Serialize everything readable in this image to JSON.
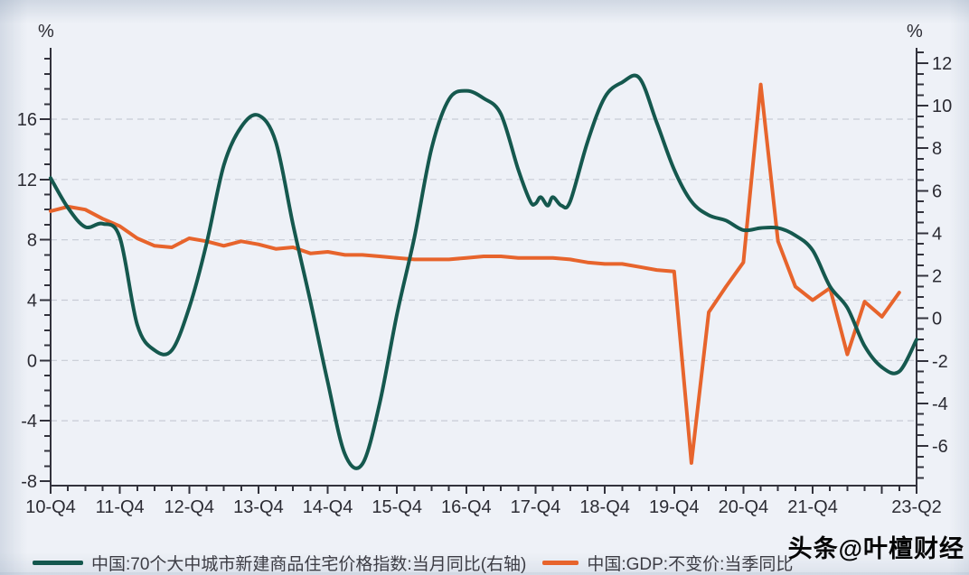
{
  "units": {
    "left": "%",
    "right": "%"
  },
  "legend": [
    {
      "label": "中国:70个大中城市新建商品住宅价格指数:当月同比(右轴)"
    },
    {
      "label": "中国:GDP:不变价:当季同比"
    }
  ],
  "watermark": "头条@叶檀财经",
  "chart_data": {
    "type": "line",
    "x_unit": "quarter",
    "x_start": "2010-Q4",
    "x_end": "2023-Q2",
    "x_labels": [
      {
        "q": 0,
        "label": "10-Q4"
      },
      {
        "q": 4,
        "label": "11-Q4"
      },
      {
        "q": 8,
        "label": "12-Q4"
      },
      {
        "q": 12,
        "label": "13-Q4"
      },
      {
        "q": 16,
        "label": "14-Q4"
      },
      {
        "q": 20,
        "label": "15-Q4"
      },
      {
        "q": 24,
        "label": "16-Q4"
      },
      {
        "q": 28,
        "label": "17-Q4"
      },
      {
        "q": 32,
        "label": "18-Q4"
      },
      {
        "q": 36,
        "label": "19-Q4"
      },
      {
        "q": 40,
        "label": "20-Q4"
      },
      {
        "q": 44,
        "label": "21-Q4"
      },
      {
        "q": 50,
        "label": "23-Q2"
      }
    ],
    "left_axis": {
      "unit": "%",
      "majors": [
        16,
        12,
        8,
        4,
        0,
        -4,
        -8
      ],
      "minor_step": 1,
      "minor_range": [
        -8,
        20
      ],
      "range": [
        -8.4,
        20.7
      ],
      "gridlines": [
        16,
        12,
        8,
        4,
        0,
        -4
      ]
    },
    "right_axis": {
      "unit": "%",
      "majors": [
        12,
        10,
        8,
        6,
        4,
        2,
        0,
        -2,
        -4,
        -6
      ],
      "minor_step": 0.5,
      "minor_range": [
        -7.5,
        12.5
      ],
      "range": [
        -7.9,
        12.7
      ]
    },
    "grid": {
      "style": "dashed",
      "color": "#c8ccd5"
    },
    "series": [
      {
        "name": "中国:70个大中城市新建商品住宅价格指数:当月同比(右轴)",
        "axis": "right",
        "color": "#15584e",
        "style": "smooth",
        "points": [
          [
            0,
            6.6
          ],
          [
            1,
            5.2
          ],
          [
            2,
            4.3
          ],
          [
            3,
            4.45
          ],
          [
            4,
            3.8
          ],
          [
            5,
            -0.3
          ],
          [
            6,
            -1.5
          ],
          [
            7,
            -1.5
          ],
          [
            8,
            0.5
          ],
          [
            9,
            3.5
          ],
          [
            10,
            7.2
          ],
          [
            11,
            9.0
          ],
          [
            12,
            9.55
          ],
          [
            13,
            8.3
          ],
          [
            14,
            4.4
          ],
          [
            15,
            0.8
          ],
          [
            16,
            -3.0
          ],
          [
            17,
            -6.4
          ],
          [
            18,
            -6.85
          ],
          [
            19,
            -4.0
          ],
          [
            20,
            0.2
          ],
          [
            21,
            3.8
          ],
          [
            22,
            8.0
          ],
          [
            23,
            10.3
          ],
          [
            24,
            10.7
          ],
          [
            25,
            10.35
          ],
          [
            26,
            9.6
          ],
          [
            27,
            7.0
          ],
          [
            27.7,
            5.5
          ],
          [
            28,
            5.4
          ],
          [
            28.3,
            5.7
          ],
          [
            28.7,
            5.3
          ],
          [
            29,
            5.7
          ],
          [
            29.5,
            5.3
          ],
          [
            30,
            5.5
          ],
          [
            31,
            8.3
          ],
          [
            32,
            10.4
          ],
          [
            33,
            11.1
          ],
          [
            34,
            11.3
          ],
          [
            35,
            9.2
          ],
          [
            36,
            7.0
          ],
          [
            37,
            5.5
          ],
          [
            38,
            4.85
          ],
          [
            39,
            4.6
          ],
          [
            40,
            4.15
          ],
          [
            41,
            4.25
          ],
          [
            42,
            4.25
          ],
          [
            43,
            3.9
          ],
          [
            44,
            3.2
          ],
          [
            45,
            1.5
          ],
          [
            46,
            0.5
          ],
          [
            47,
            -1.3
          ],
          [
            48,
            -2.3
          ],
          [
            49,
            -2.5
          ],
          [
            50,
            -1.0
          ]
        ]
      },
      {
        "name": "中国:GDP:不变价:当季同比",
        "axis": "left",
        "color": "#e7642c",
        "style": "linear",
        "points": [
          [
            0,
            9.9
          ],
          [
            1,
            10.2
          ],
          [
            2,
            10.0
          ],
          [
            3,
            9.4
          ],
          [
            4,
            8.9
          ],
          [
            5,
            8.1
          ],
          [
            6,
            7.6
          ],
          [
            7,
            7.5
          ],
          [
            8,
            8.1
          ],
          [
            9,
            7.9
          ],
          [
            10,
            7.6
          ],
          [
            11,
            7.9
          ],
          [
            12,
            7.7
          ],
          [
            13,
            7.4
          ],
          [
            14,
            7.5
          ],
          [
            15,
            7.1
          ],
          [
            16,
            7.2
          ],
          [
            17,
            7.0
          ],
          [
            18,
            7.0
          ],
          [
            19,
            6.9
          ],
          [
            20,
            6.8
          ],
          [
            21,
            6.7
          ],
          [
            22,
            6.7
          ],
          [
            23,
            6.7
          ],
          [
            24,
            6.8
          ],
          [
            25,
            6.9
          ],
          [
            26,
            6.9
          ],
          [
            27,
            6.8
          ],
          [
            28,
            6.8
          ],
          [
            29,
            6.8
          ],
          [
            30,
            6.7
          ],
          [
            31,
            6.5
          ],
          [
            32,
            6.4
          ],
          [
            33,
            6.4
          ],
          [
            34,
            6.2
          ],
          [
            35,
            6.0
          ],
          [
            36,
            5.9
          ],
          [
            37,
            -6.8
          ],
          [
            38,
            3.2
          ],
          [
            39,
            4.9
          ],
          [
            40,
            6.5
          ],
          [
            41,
            18.3
          ],
          [
            42,
            7.9
          ],
          [
            43,
            4.9
          ],
          [
            44,
            4.0
          ],
          [
            45,
            4.8
          ],
          [
            46,
            0.4
          ],
          [
            47,
            3.9
          ],
          [
            48,
            2.9
          ],
          [
            49,
            4.5
          ]
        ]
      }
    ]
  }
}
